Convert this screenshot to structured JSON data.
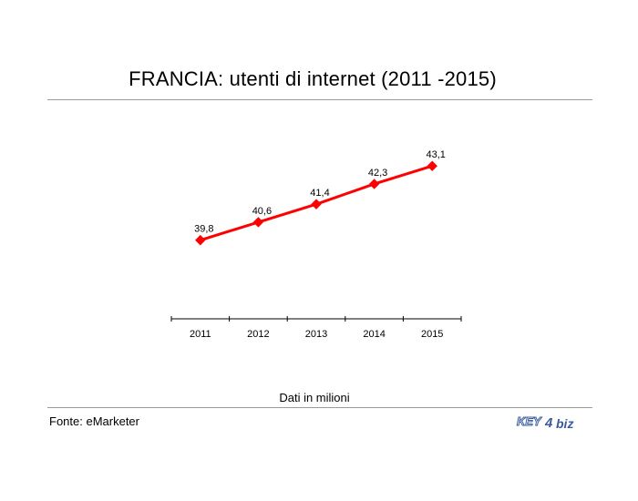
{
  "title": "FRANCIA: utenti di internet (2011 -2015)",
  "note": "Dati in milioni",
  "source": "Fonte: eMarketer",
  "logo": {
    "text_left": "KEY",
    "text_mid": "4",
    "text_right": "biz"
  },
  "colors": {
    "series": "#ff0000",
    "rule": "#9a9a9a",
    "logo": "#3b5ba0"
  },
  "chart_data": {
    "type": "line",
    "title": "FRANCIA: utenti di internet (2011 -2015)",
    "x": [
      "2011",
      "2012",
      "2013",
      "2014",
      "2015"
    ],
    "series": [
      {
        "values": [
          39.8,
          40.6,
          41.4,
          42.3,
          43.1
        ],
        "labels": [
          "39,8",
          "40,6",
          "41,4",
          "42,3",
          "43,1"
        ]
      }
    ],
    "ylim": [
      36.3,
      44.0
    ],
    "grid": false,
    "legend": "none",
    "marker": "diamond"
  }
}
